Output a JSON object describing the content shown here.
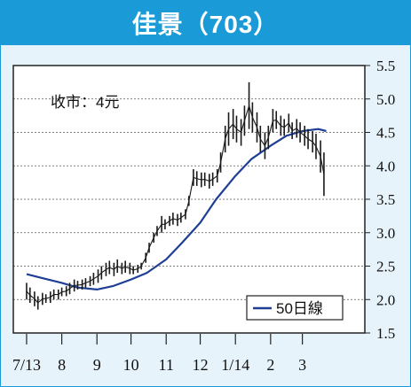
{
  "colors": {
    "title_bg": "#1a9ad6",
    "title_text": "#ffffff",
    "panel_bg": "#e7f3fa",
    "plot_bg": "#ffffff",
    "price": "#1a1a1a",
    "ma": "#1f3f95",
    "grid": "#555555"
  },
  "chart_data": {
    "type": "line",
    "title": "佳景（703）",
    "annotation": "收市：4元",
    "legend": {
      "label": "50日線",
      "placement": "bottom-right"
    },
    "x_ticks": [
      "7/13",
      "8",
      "9",
      "10",
      "11",
      "12",
      "1/14",
      "2",
      "3"
    ],
    "x_tick_dates": [
      "2013-07-01",
      "2013-08-01",
      "2013-09-01",
      "2013-10-01",
      "2013-11-01",
      "2013-12-01",
      "2014-01-01",
      "2014-02-01",
      "2014-03-01"
    ],
    "y_ticks": [
      1.5,
      2.0,
      2.5,
      3.0,
      3.5,
      4.0,
      4.5,
      5.0,
      5.5
    ],
    "y_tick_labels": [
      "1.5",
      "2.0",
      "2.5",
      "3.0",
      "3.5",
      "4.0",
      "4.5",
      "5.0",
      "5.5"
    ],
    "ylim": [
      1.5,
      5.5
    ],
    "xlim": [
      "2013-06-24",
      "2014-03-31"
    ],
    "grid": "horizontal dashed",
    "series": [
      {
        "name": "price",
        "style": "daily high-low",
        "dates": [
          "2013-07-01",
          "2013-07-04",
          "2013-07-08",
          "2013-07-11",
          "2013-07-15",
          "2013-07-18",
          "2013-07-22",
          "2013-07-25",
          "2013-07-29",
          "2013-08-01",
          "2013-08-05",
          "2013-08-08",
          "2013-08-12",
          "2013-08-15",
          "2013-08-19",
          "2013-08-22",
          "2013-08-26",
          "2013-08-29",
          "2013-09-02",
          "2013-09-05",
          "2013-09-09",
          "2013-09-12",
          "2013-09-16",
          "2013-09-19",
          "2013-09-23",
          "2013-09-26",
          "2013-09-30",
          "2013-10-03",
          "2013-10-07",
          "2013-10-10",
          "2013-10-14",
          "2013-10-17",
          "2013-10-21",
          "2013-10-24",
          "2013-10-28",
          "2013-10-31",
          "2013-11-04",
          "2013-11-07",
          "2013-11-11",
          "2013-11-14",
          "2013-11-18",
          "2013-11-21",
          "2013-11-25",
          "2013-11-28",
          "2013-12-02",
          "2013-12-05",
          "2013-12-09",
          "2013-12-12",
          "2013-12-16",
          "2013-12-19",
          "2013-12-23",
          "2013-12-26",
          "2013-12-30",
          "2014-01-02",
          "2014-01-06",
          "2014-01-09",
          "2014-01-13",
          "2014-01-16",
          "2014-01-20",
          "2014-01-23",
          "2014-01-27",
          "2014-01-30",
          "2014-02-03",
          "2014-02-06",
          "2014-02-10",
          "2014-02-13",
          "2014-02-17",
          "2014-02-20",
          "2014-02-24",
          "2014-02-27",
          "2014-03-03",
          "2014-03-06",
          "2014-03-10",
          "2014-03-13",
          "2014-03-17",
          "2014-03-20"
        ],
        "highs": [
          2.25,
          2.18,
          2.12,
          2.05,
          2.1,
          2.08,
          2.12,
          2.15,
          2.15,
          2.18,
          2.2,
          2.25,
          2.3,
          2.28,
          2.3,
          2.32,
          2.35,
          2.4,
          2.45,
          2.5,
          2.55,
          2.58,
          2.55,
          2.6,
          2.55,
          2.58,
          2.55,
          2.5,
          2.52,
          2.55,
          2.7,
          2.85,
          3.0,
          3.1,
          3.25,
          3.2,
          3.25,
          3.3,
          3.28,
          3.3,
          3.35,
          3.55,
          3.95,
          3.92,
          3.9,
          3.9,
          3.88,
          3.9,
          3.95,
          4.2,
          4.6,
          4.8,
          4.85,
          4.75,
          4.7,
          4.9,
          5.25,
          4.95,
          4.8,
          4.6,
          4.5,
          4.6,
          4.85,
          4.82,
          4.75,
          4.7,
          4.78,
          4.65,
          4.7,
          4.65,
          4.6,
          4.55,
          4.52,
          4.48,
          4.38,
          4.2
        ],
        "lows": [
          2.0,
          1.95,
          1.9,
          1.85,
          1.92,
          1.95,
          1.95,
          2.0,
          2.0,
          2.05,
          2.05,
          2.08,
          2.12,
          2.15,
          2.15,
          2.18,
          2.2,
          2.22,
          2.25,
          2.3,
          2.35,
          2.38,
          2.35,
          2.4,
          2.38,
          2.4,
          2.38,
          2.38,
          2.4,
          2.45,
          2.55,
          2.7,
          2.85,
          2.95,
          3.0,
          3.05,
          3.1,
          3.12,
          3.1,
          3.15,
          3.2,
          3.4,
          3.7,
          3.7,
          3.68,
          3.7,
          3.66,
          3.7,
          3.75,
          3.9,
          4.2,
          4.3,
          4.4,
          4.35,
          4.3,
          4.45,
          4.55,
          4.5,
          4.35,
          4.2,
          4.1,
          4.25,
          4.5,
          4.55,
          4.45,
          4.45,
          4.5,
          4.4,
          4.42,
          4.35,
          4.3,
          4.25,
          4.2,
          4.1,
          3.9,
          3.55
        ]
      },
      {
        "name": "50日線",
        "dates": [
          "2013-07-01",
          "2013-07-15",
          "2013-08-01",
          "2013-08-15",
          "2013-09-01",
          "2013-09-15",
          "2013-10-01",
          "2013-10-15",
          "2013-11-01",
          "2013-11-15",
          "2013-12-01",
          "2013-12-15",
          "2014-01-01",
          "2014-01-15",
          "2014-02-01",
          "2014-02-15",
          "2014-03-01",
          "2014-03-15",
          "2014-03-22"
        ],
        "values": [
          2.38,
          2.32,
          2.25,
          2.18,
          2.15,
          2.2,
          2.3,
          2.4,
          2.6,
          2.85,
          3.15,
          3.5,
          3.85,
          4.1,
          4.3,
          4.45,
          4.52,
          4.55,
          4.52
        ]
      }
    ]
  }
}
